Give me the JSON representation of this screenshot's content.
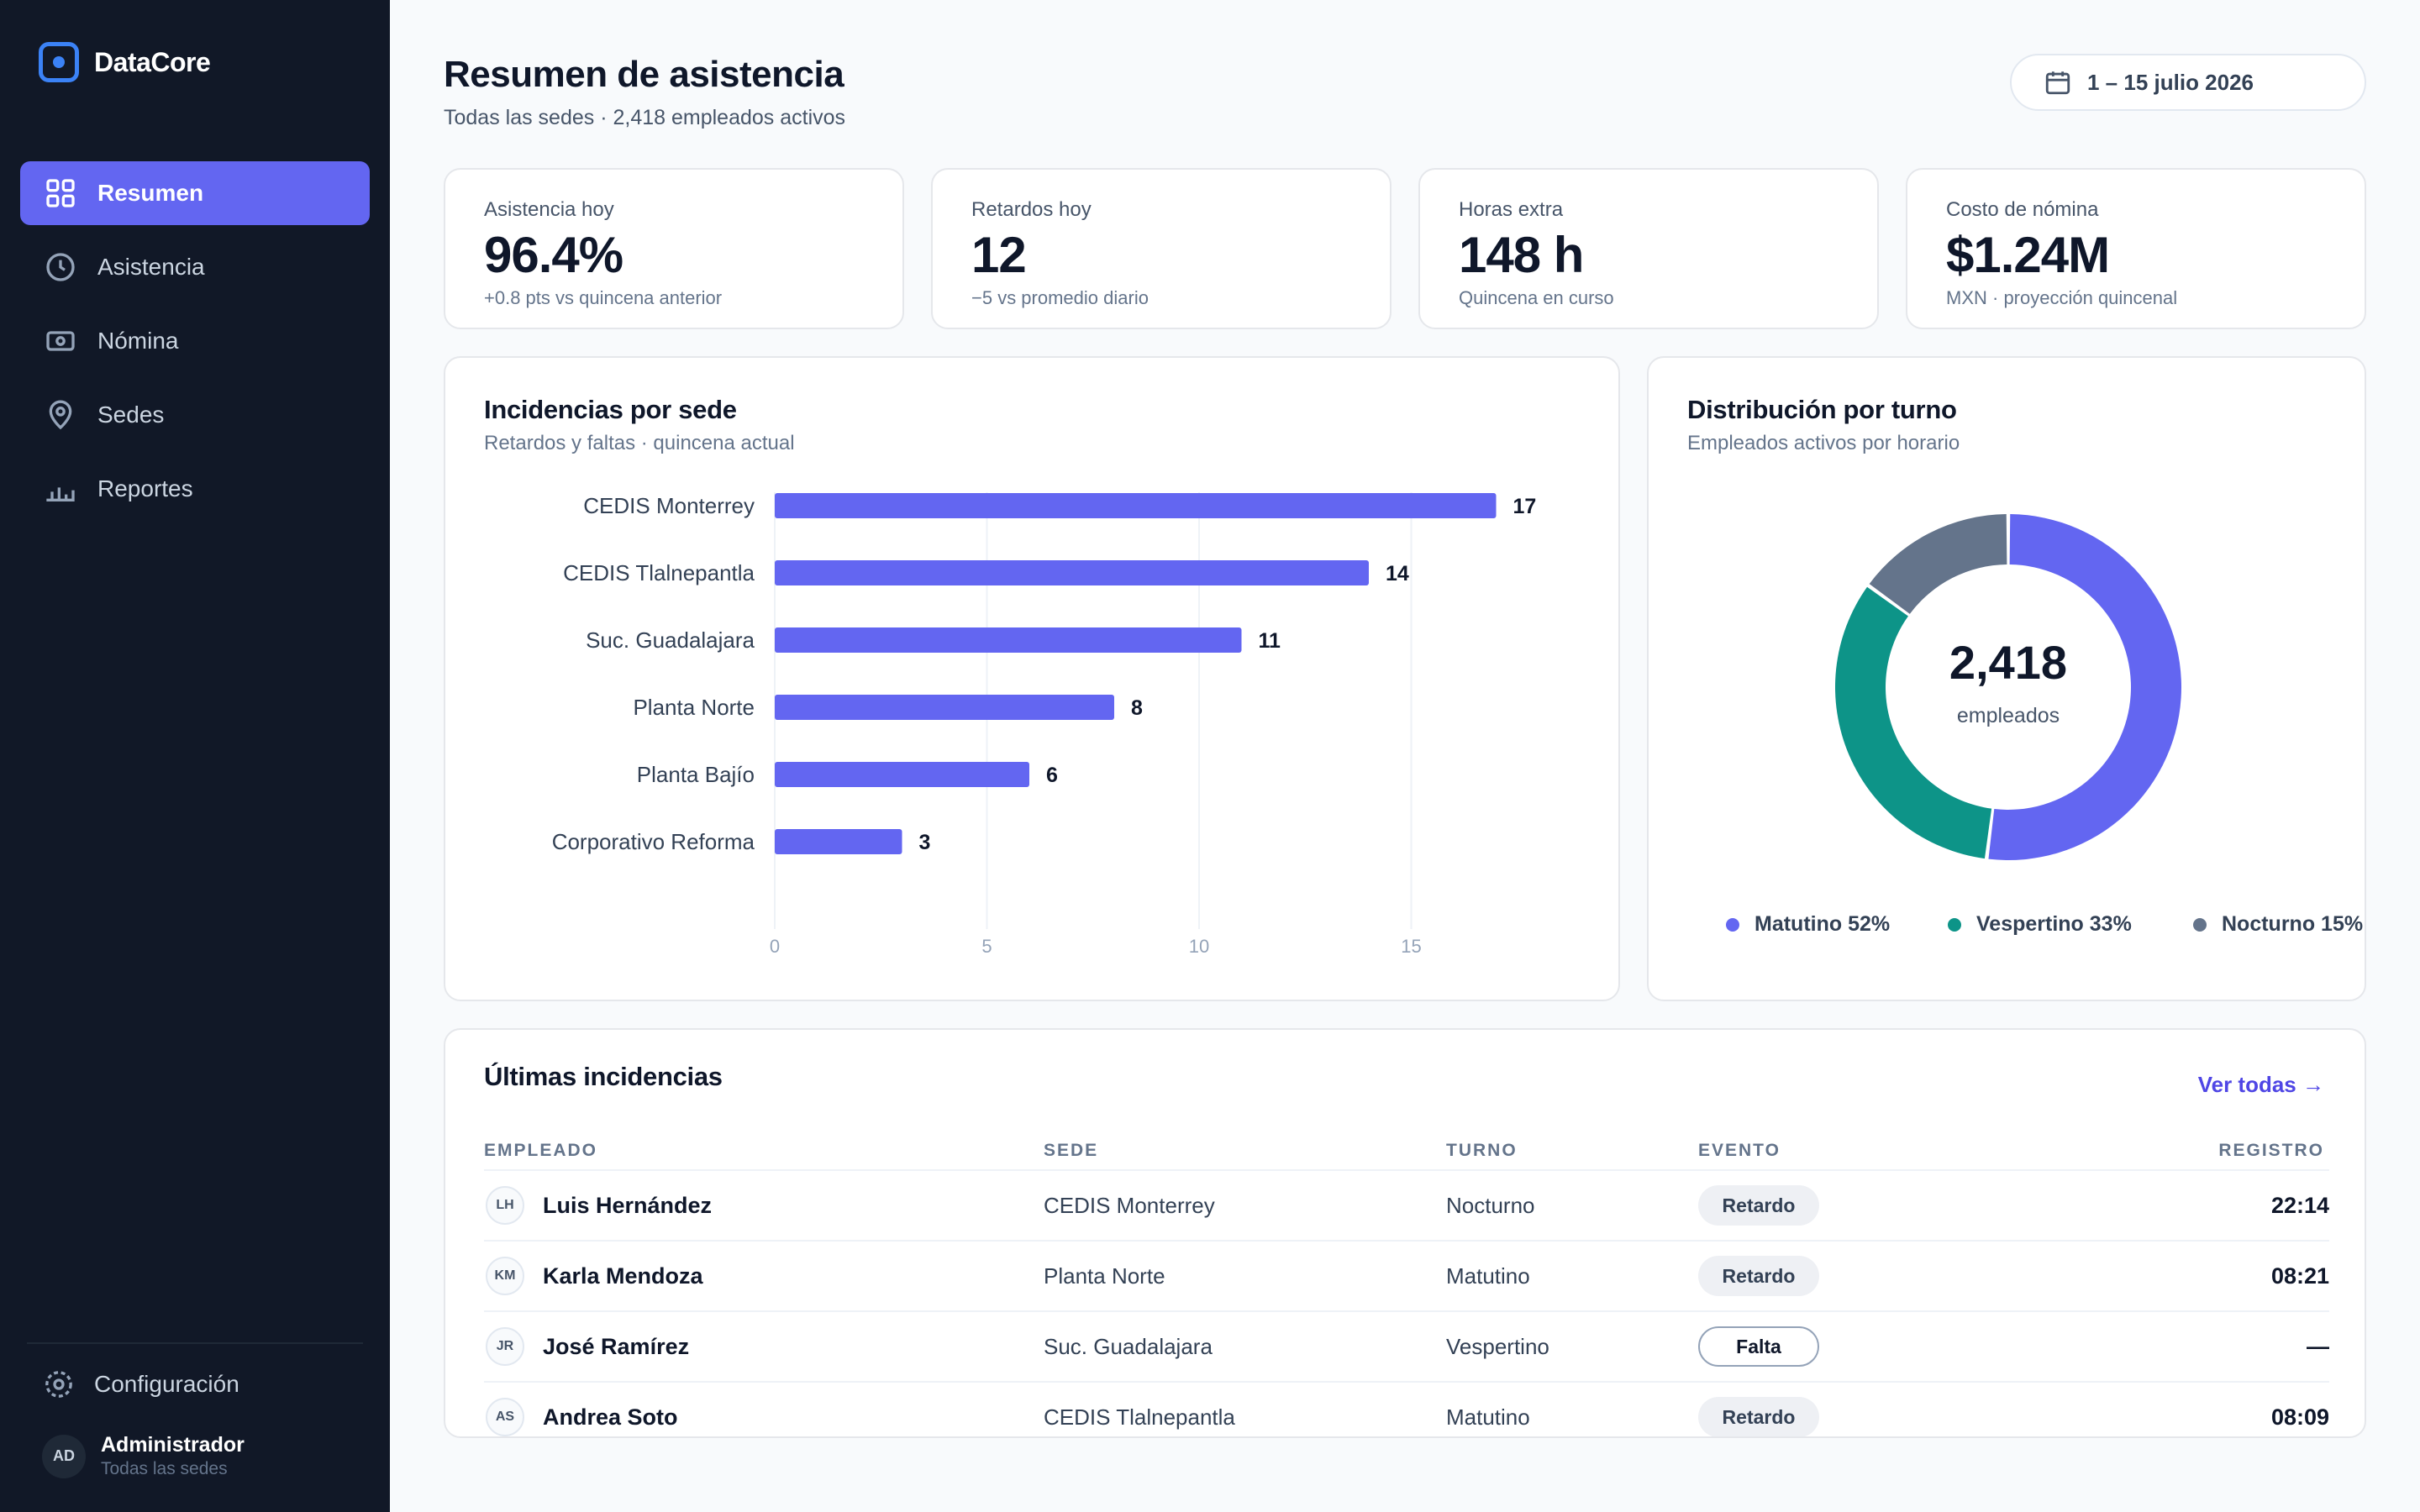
{
  "app": {
    "name": "DataCore"
  },
  "sidebar": {
    "nav": [
      {
        "label": "Resumen",
        "icon": "grid-icon",
        "active": true
      },
      {
        "label": "Asistencia",
        "icon": "clock-icon",
        "active": false
      },
      {
        "label": "Nómina",
        "icon": "banknote-icon",
        "active": false
      },
      {
        "label": "Sedes",
        "icon": "map-pin-icon",
        "active": false
      },
      {
        "label": "Reportes",
        "icon": "bar-chart-icon",
        "active": false
      }
    ],
    "config_label": "Configuración",
    "user": {
      "initials": "AD",
      "name": "Administrador",
      "subtitle": "Todas las sedes"
    }
  },
  "header": {
    "title": "Resumen de asistencia",
    "subtitle": "Todas las sedes · 2,418 empleados activos",
    "date_range": "1 – 15 julio 2026"
  },
  "kpis": [
    {
      "label": "Asistencia hoy",
      "value": "96.4%",
      "note": "+0.8 pts vs quincena anterior"
    },
    {
      "label": "Retardos hoy",
      "value": "12",
      "note": "−5 vs promedio diario"
    },
    {
      "label": "Horas extra",
      "value": "148 h",
      "note": "Quincena en curso"
    },
    {
      "label": "Costo de nómina",
      "value": "$1.24M",
      "note": "MXN · proyección quincenal"
    }
  ],
  "incidents_panel": {
    "title": "Incidencias por sede",
    "subtitle": "Retardos y faltas · quincena actual"
  },
  "shift_panel": {
    "title": "Distribución por turno",
    "subtitle": "Empleados activos por horario",
    "total": "2,418",
    "total_unit": "empleados"
  },
  "chart_data": [
    {
      "type": "bar",
      "orientation": "horizontal",
      "title": "Incidencias por sede",
      "subtitle": "Retardos y faltas · quincena actual",
      "categories": [
        "CEDIS Monterrey",
        "CEDIS Tlalnepantla",
        "Suc. Guadalajara",
        "Planta Norte",
        "Planta Bajío",
        "Corporativo Reforma"
      ],
      "values": [
        17,
        14,
        11,
        8,
        6,
        3
      ],
      "xticks": [
        "0",
        "5",
        "10",
        "15"
      ],
      "xlim": [
        0,
        20
      ],
      "grid": true,
      "color": "#6366f1"
    },
    {
      "type": "pie",
      "variant": "donut",
      "title": "Distribución por turno",
      "subtitle": "Empleados activos por horario",
      "center_value": "2,418",
      "center_label": "empleados",
      "legend_position": "bottom",
      "series": [
        {
          "name": "Matutino",
          "value": 52,
          "label": "Matutino 52%",
          "color": "#6366f1"
        },
        {
          "name": "Vespertino",
          "value": 33,
          "label": "Vespertino 33%",
          "color": "#0d9488"
        },
        {
          "name": "Nocturno",
          "value": 15,
          "label": "Nocturno 15%",
          "color": "#64748b"
        }
      ]
    }
  ],
  "table": {
    "title": "Últimas incidencias",
    "link": "Ver todas →",
    "columns": [
      "EMPLEADO",
      "SEDE",
      "TURNO",
      "EVENTO",
      "REGISTRO"
    ],
    "rows": [
      {
        "initials": "LH",
        "name": "Luis Hernández",
        "sede": "CEDIS Monterrey",
        "turno": "Nocturno",
        "evento": "Retardo",
        "registro": "22:14"
      },
      {
        "initials": "KM",
        "name": "Karla Mendoza",
        "sede": "Planta Norte",
        "turno": "Matutino",
        "evento": "Retardo",
        "registro": "08:21"
      },
      {
        "initials": "JR",
        "name": "José Ramírez",
        "sede": "Suc. Guadalajara",
        "turno": "Vespertino",
        "evento": "Falta",
        "registro": "—"
      },
      {
        "initials": "AS",
        "name": "Andrea Soto",
        "sede": "CEDIS Tlalnepantla",
        "turno": "Matutino",
        "evento": "Retardo",
        "registro": "08:09"
      }
    ]
  },
  "colors": {
    "accent": "#6366f1",
    "teal": "#0d9488",
    "slate": "#64748b",
    "sidebar": "#111827",
    "brand": "#3b82f6"
  }
}
